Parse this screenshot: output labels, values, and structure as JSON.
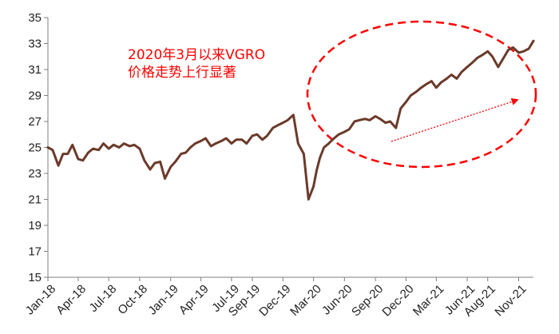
{
  "chart_data": {
    "type": "line",
    "title": "",
    "xlabel": "",
    "ylabel": "",
    "ylim": [
      15,
      35
    ],
    "yticks": [
      15,
      17,
      19,
      21,
      23,
      25,
      27,
      29,
      31,
      33,
      35
    ],
    "xticks": [
      "Jan-18",
      "Apr-18",
      "Jul-18",
      "Oct-18",
      "Jan-19",
      "Apr-19",
      "Jul-19",
      "Sep-19",
      "Dec-19",
      "Mar-20",
      "Jun-20",
      "Sep-20",
      "Dec-20",
      "Mar-21",
      "Jun-21",
      "Aug-21",
      "Nov-21"
    ],
    "grid": false,
    "legend": "none",
    "annotation": {
      "lines": [
        "2020年3月以来VGRO",
        "价格走势上行显著"
      ],
      "color": "#ff0000"
    },
    "series": [
      {
        "color": "#6b3a2a",
        "x": [
          "2018-01-01",
          "2018-01-15",
          "2018-02-01",
          "2018-02-15",
          "2018-03-01",
          "2018-03-15",
          "2018-04-01",
          "2018-04-15",
          "2018-05-01",
          "2018-05-15",
          "2018-06-01",
          "2018-06-15",
          "2018-07-01",
          "2018-07-15",
          "2018-08-01",
          "2018-08-15",
          "2018-09-01",
          "2018-09-15",
          "2018-10-01",
          "2018-10-15",
          "2018-11-01",
          "2018-11-15",
          "2018-12-01",
          "2018-12-15",
          "2019-01-01",
          "2019-01-15",
          "2019-02-01",
          "2019-02-15",
          "2019-03-01",
          "2019-03-15",
          "2019-04-01",
          "2019-04-15",
          "2019-05-01",
          "2019-05-15",
          "2019-06-01",
          "2019-06-15",
          "2019-07-01",
          "2019-07-15",
          "2019-08-01",
          "2019-08-15",
          "2019-09-01",
          "2019-09-15",
          "2019-10-01",
          "2019-10-15",
          "2019-11-01",
          "2019-11-15",
          "2019-12-01",
          "2019-12-15",
          "2020-01-01",
          "2020-01-15",
          "2020-02-01",
          "2020-02-15",
          "2020-03-01",
          "2020-03-10",
          "2020-03-20",
          "2020-04-01",
          "2020-04-15",
          "2020-05-01",
          "2020-05-15",
          "2020-06-01",
          "2020-06-15",
          "2020-07-01",
          "2020-07-15",
          "2020-08-01",
          "2020-08-15",
          "2020-09-01",
          "2020-09-15",
          "2020-10-01",
          "2020-10-15",
          "2020-11-01",
          "2020-11-15",
          "2020-12-01",
          "2020-12-15",
          "2021-01-01",
          "2021-01-15",
          "2021-02-01",
          "2021-02-15",
          "2021-03-01",
          "2021-03-15",
          "2021-04-01",
          "2021-04-15",
          "2021-05-01",
          "2021-05-15",
          "2021-06-01",
          "2021-06-15",
          "2021-07-01",
          "2021-07-15",
          "2021-08-01",
          "2021-08-15",
          "2021-09-01",
          "2021-09-15",
          "2021-10-01",
          "2021-10-15",
          "2021-11-01",
          "2021-11-15",
          "2021-12-01",
          "2021-12-15"
        ],
        "y": [
          25.0,
          24.8,
          23.6,
          24.5,
          24.5,
          25.2,
          24.1,
          24.0,
          24.6,
          24.9,
          24.8,
          25.3,
          24.9,
          25.2,
          25.0,
          25.3,
          25.1,
          25.2,
          24.9,
          24.0,
          23.3,
          23.8,
          23.9,
          22.6,
          23.5,
          23.9,
          24.5,
          24.6,
          25.0,
          25.3,
          25.5,
          25.7,
          25.1,
          25.3,
          25.5,
          25.7,
          25.3,
          25.6,
          25.6,
          25.3,
          25.9,
          26.0,
          25.6,
          25.9,
          26.5,
          26.7,
          26.9,
          27.1,
          27.5,
          25.3,
          24.5,
          21.0,
          22.0,
          23.2,
          24.2,
          25.0,
          25.3,
          25.7,
          26.0,
          26.2,
          26.4,
          27.0,
          27.1,
          27.2,
          27.1,
          27.4,
          27.2,
          26.9,
          27.0,
          26.5,
          28.0,
          28.5,
          29.0,
          29.3,
          29.6,
          29.9,
          30.1,
          29.6,
          30.0,
          30.3,
          30.6,
          30.3,
          30.8,
          31.2,
          31.5,
          31.9,
          32.1,
          32.4,
          32.0,
          31.2,
          31.8,
          32.5,
          32.7,
          32.3,
          32.4,
          32.6,
          33.2
        ]
      }
    ]
  }
}
